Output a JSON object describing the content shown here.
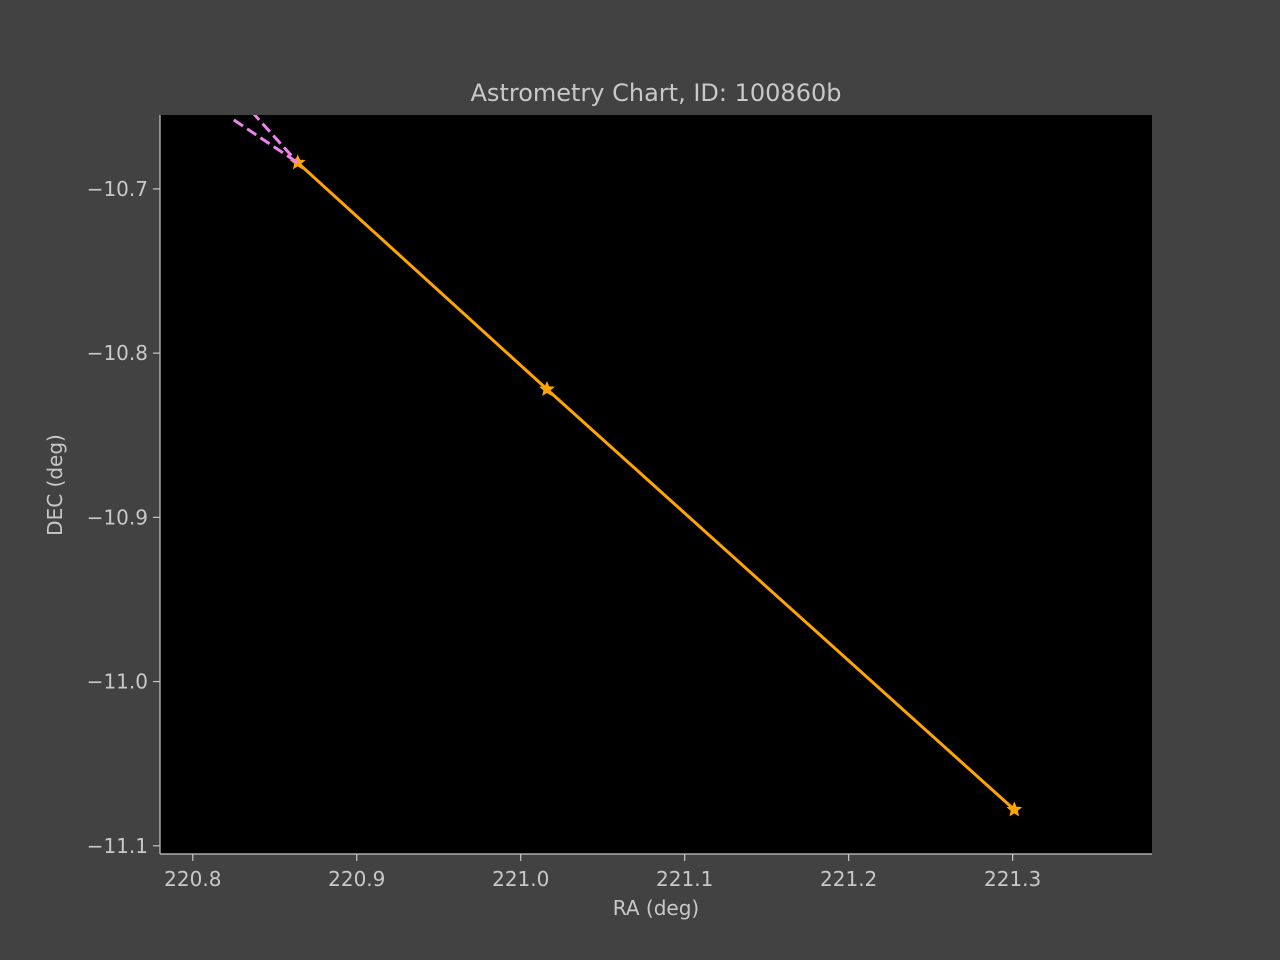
{
  "colors": {
    "figure_background": "#424242",
    "plot_background": "#000000",
    "text": "#c8c8c8",
    "axis": "#c8c8c8",
    "track": "#ffa500",
    "dashed": "#ee82ee"
  },
  "chart_data": {
    "type": "line",
    "title": "Astrometry Chart, ID: 100860b",
    "xlabel": "RA (deg)",
    "ylabel": "DEC (deg)",
    "xlim": [
      220.78,
      221.385
    ],
    "ylim": [
      -11.105,
      -10.655
    ],
    "xticks": [
      220.8,
      220.9,
      221.0,
      221.1,
      221.2,
      221.3
    ],
    "xtick_labels": [
      "220.8",
      "220.9",
      "221.0",
      "221.1",
      "221.2",
      "221.3"
    ],
    "yticks": [
      -10.7,
      -10.8,
      -10.9,
      -11.0,
      -11.1
    ],
    "ytick_labels": [
      "−10.7",
      "−10.8",
      "−10.9",
      "−11.0",
      "−11.1"
    ],
    "grid": false,
    "legend": false,
    "series": [
      {
        "style": "solid",
        "marker": "star",
        "color": "#ffa500",
        "x": [
          220.864,
          221.016,
          221.301
        ],
        "y": [
          -10.684,
          -10.822,
          -11.078
        ]
      },
      {
        "style": "dashed",
        "marker": "none",
        "color": "#ee82ee",
        "x": [
          220.825,
          220.864
        ],
        "y": [
          -10.658,
          -10.684
        ]
      },
      {
        "style": "dashed",
        "marker": "none",
        "color": "#ee82ee",
        "x": [
          220.836,
          220.864
        ],
        "y": [
          -10.653,
          -10.684
        ]
      }
    ]
  }
}
